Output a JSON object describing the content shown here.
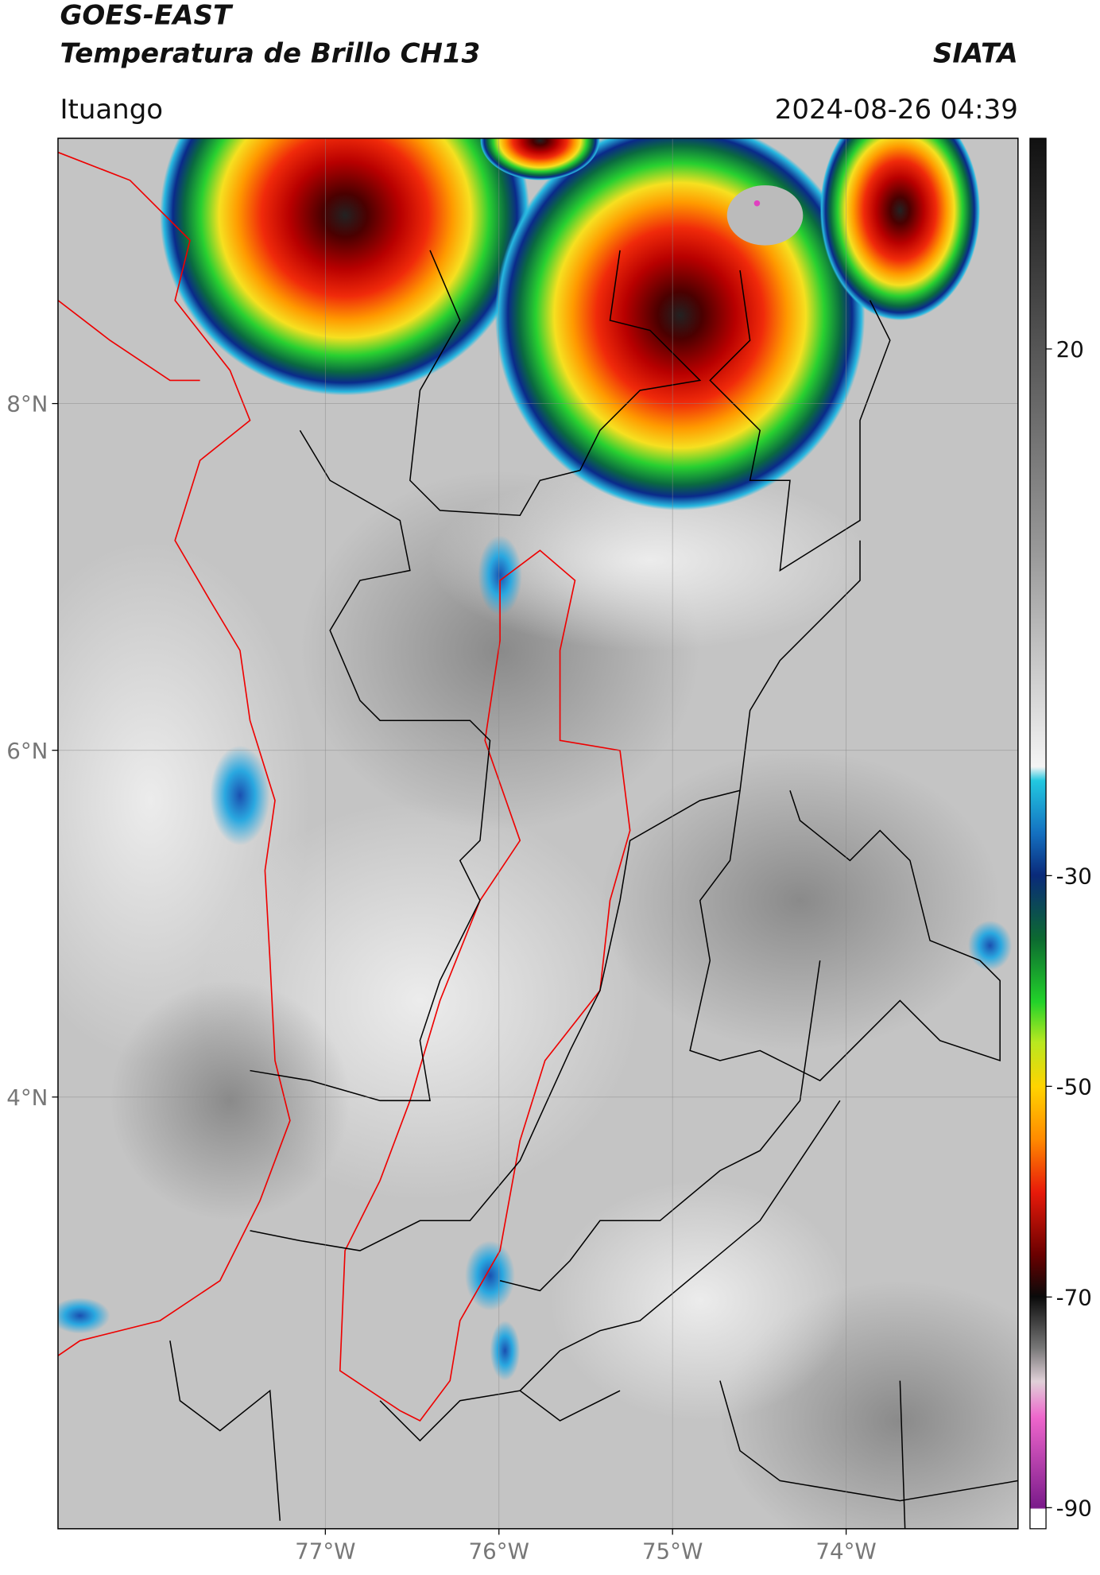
{
  "header": {
    "title": "GOES-EAST",
    "subtitle": "Temperatura de Brillo CH13",
    "source": "SIATA",
    "location": "Ituango",
    "datetime": "2024-08-26 04:39"
  },
  "map": {
    "xlim": [
      -78.54,
      -73.01
    ],
    "ylim": [
      1.51,
      9.53
    ],
    "xticks": [
      {
        "value": -77,
        "label": "77°W"
      },
      {
        "value": -76,
        "label": "76°W"
      },
      {
        "value": -75,
        "label": "75°W"
      },
      {
        "value": -74,
        "label": "74°W"
      }
    ],
    "yticks": [
      {
        "value": 8,
        "label": "8°N"
      },
      {
        "value": 6,
        "label": "6°N"
      },
      {
        "value": 4,
        "label": "4°N"
      }
    ],
    "grid": true
  },
  "colorbar": {
    "lim": [
      -92,
      40
    ],
    "ticks": [
      20,
      -30,
      -50,
      -70,
      -90
    ]
  }
}
